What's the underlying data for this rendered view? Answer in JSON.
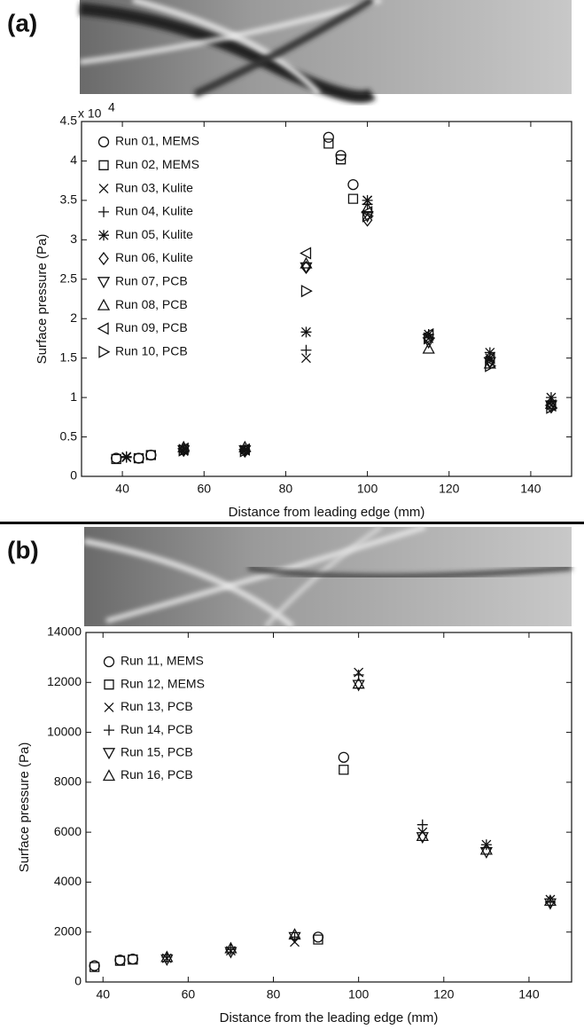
{
  "chart_data": [
    {
      "type": "scatter",
      "panel_label": "(a)",
      "y_label": "Surface pressure (Pa)",
      "x_label": "Distance from leading edge (mm)",
      "y_multiplier": "x 10",
      "y_multiplier_exp": "4",
      "xlim": [
        30,
        150
      ],
      "ylim": [
        0,
        45000
      ],
      "xticks": [
        40,
        60,
        80,
        100,
        120,
        140
      ],
      "yticks": [
        0,
        {
          "value": 5000,
          "label": "0.5"
        },
        {
          "value": 10000,
          "label": "1"
        },
        {
          "value": 15000,
          "label": "1.5"
        },
        {
          "value": 20000,
          "label": "2"
        },
        {
          "value": 25000,
          "label": "2.5"
        },
        {
          "value": 30000,
          "label": "3"
        },
        {
          "value": 35000,
          "label": "3.5"
        },
        {
          "value": 40000,
          "label": "4"
        },
        {
          "value": 45000,
          "label": "4.5"
        }
      ],
      "legend": "upper left",
      "series": [
        {
          "name": "Run 01, MEMS",
          "marker": "circle",
          "color": "#111111",
          "x": [
            38.5,
            44,
            47,
            90.5,
            93.5,
            96.5
          ],
          "values": [
            2300,
            2300,
            2700,
            43000,
            40700,
            37000
          ]
        },
        {
          "name": "Run 02, MEMS",
          "marker": "square",
          "color": "#111111",
          "x": [
            38.5,
            44,
            47,
            90.5,
            93.5,
            96.5
          ],
          "values": [
            2200,
            2300,
            2700,
            42200,
            40200,
            35200
          ]
        },
        {
          "name": "Run 03, Kulite",
          "marker": "x",
          "color": "#111111",
          "x": [
            41,
            55,
            70,
            85,
            100,
            115,
            130,
            145
          ],
          "values": [
            2500,
            3200,
            3300,
            15000,
            35000,
            17500,
            15000,
            9000
          ]
        },
        {
          "name": "Run 04, Kulite",
          "marker": "plus",
          "color": "#111111",
          "x": [
            41,
            55,
            70,
            85,
            100,
            115,
            130,
            145
          ],
          "values": [
            2500,
            3400,
            3300,
            16000,
            34500,
            18000,
            15000,
            9500
          ]
        },
        {
          "name": "Run 05, Kulite",
          "marker": "star",
          "color": "#111111",
          "x": [
            41,
            55,
            70,
            85,
            100,
            115,
            130,
            145
          ],
          "values": [
            2400,
            3500,
            3400,
            18300,
            35000,
            18000,
            15700,
            10000
          ]
        },
        {
          "name": "Run 06, Kulite",
          "marker": "diamond",
          "color": "#111111",
          "x": [
            55,
            70,
            85,
            100,
            115,
            130,
            145
          ],
          "values": [
            3300,
            3200,
            26500,
            32500,
            17500,
            14500,
            8800
          ]
        },
        {
          "name": "Run 07, PCB",
          "marker": "triangle-down",
          "color": "#111111",
          "x": [
            55,
            70,
            85,
            100,
            115,
            130,
            145
          ],
          "values": [
            3300,
            3300,
            26500,
            33000,
            17000,
            14500,
            9000
          ]
        },
        {
          "name": "Run 08, PCB",
          "marker": "triangle-up",
          "color": "#111111",
          "x": [
            55,
            70,
            85,
            100,
            115,
            130,
            145
          ],
          "values": [
            3700,
            3700,
            27000,
            34000,
            16200,
            14300,
            9200
          ]
        },
        {
          "name": "Run 09, PCB",
          "marker": "triangle-left",
          "color": "#111111",
          "x": [
            55,
            70,
            85,
            100,
            115,
            130,
            145
          ],
          "values": [
            3500,
            3400,
            28300,
            33500,
            18000,
            15000,
            9000
          ]
        },
        {
          "name": "Run 10, PCB",
          "marker": "triangle-right",
          "color": "#111111",
          "x": [
            55,
            70,
            85,
            100,
            115,
            130,
            145
          ],
          "values": [
            3300,
            3200,
            23500,
            33000,
            17500,
            14000,
            8700
          ]
        }
      ]
    },
    {
      "type": "scatter",
      "panel_label": "(b)",
      "y_label": "Surface pressure (Pa)",
      "x_label": "Distance from the leading edge (mm)",
      "xlim": [
        36,
        150
      ],
      "ylim": [
        0,
        14000
      ],
      "xticks": [
        40,
        60,
        80,
        100,
        120,
        140
      ],
      "yticks": [
        0,
        2000,
        4000,
        6000,
        8000,
        10000,
        12000,
        14000
      ],
      "legend": "upper left",
      "series": [
        {
          "name": "Run 11, MEMS",
          "marker": "circle",
          "color": "#111111",
          "x": [
            38,
            44,
            47,
            90.5,
            96.5
          ],
          "values": [
            650,
            880,
            920,
            1800,
            9000
          ]
        },
        {
          "name": "Run 12, MEMS",
          "marker": "square",
          "color": "#111111",
          "x": [
            38,
            44,
            47,
            90.5,
            96.5
          ],
          "values": [
            600,
            850,
            900,
            1700,
            8500
          ]
        },
        {
          "name": "Run 13, PCB",
          "marker": "x",
          "color": "#111111",
          "x": [
            55,
            70,
            85,
            100,
            115,
            130,
            145
          ],
          "values": [
            950,
            1250,
            1600,
            12400,
            6000,
            5500,
            3300
          ]
        },
        {
          "name": "Run 14, PCB",
          "marker": "plus",
          "color": "#111111",
          "x": [
            55,
            70,
            85,
            100,
            115,
            130,
            145
          ],
          "values": [
            1000,
            1300,
            1800,
            12300,
            6300,
            5500,
            3200
          ]
        },
        {
          "name": "Run 15, PCB",
          "marker": "triangle-down",
          "color": "#111111",
          "x": [
            55,
            70,
            85,
            100,
            115,
            130,
            145
          ],
          "values": [
            900,
            1200,
            1800,
            11900,
            5800,
            5200,
            3150
          ]
        },
        {
          "name": "Run 16, PCB",
          "marker": "triangle-up",
          "color": "#111111",
          "x": [
            55,
            70,
            85,
            100,
            115,
            130,
            145
          ],
          "values": [
            1000,
            1350,
            1900,
            11950,
            5850,
            5300,
            3250
          ]
        }
      ]
    }
  ]
}
